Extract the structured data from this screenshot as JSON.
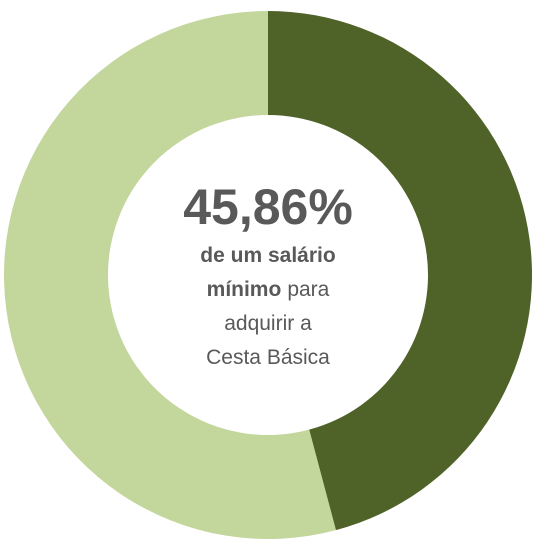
{
  "chart_data": {
    "type": "pie",
    "donut": true,
    "values": [
      45.86,
      54.14
    ],
    "value_labels": [
      "45,86%",
      null
    ],
    "colors": [
      "#4f6228",
      "#c3d69b"
    ],
    "annotation_lines": [
      [
        {
          "text": "de um salário",
          "bold": true
        }
      ],
      [
        {
          "text": "mínimo",
          "bold": true
        },
        {
          "text": "para",
          "bold": false
        }
      ],
      [
        {
          "text": "adquirir a",
          "bold": false
        }
      ],
      [
        {
          "text": "Cesta Básica",
          "bold": false
        }
      ]
    ]
  }
}
